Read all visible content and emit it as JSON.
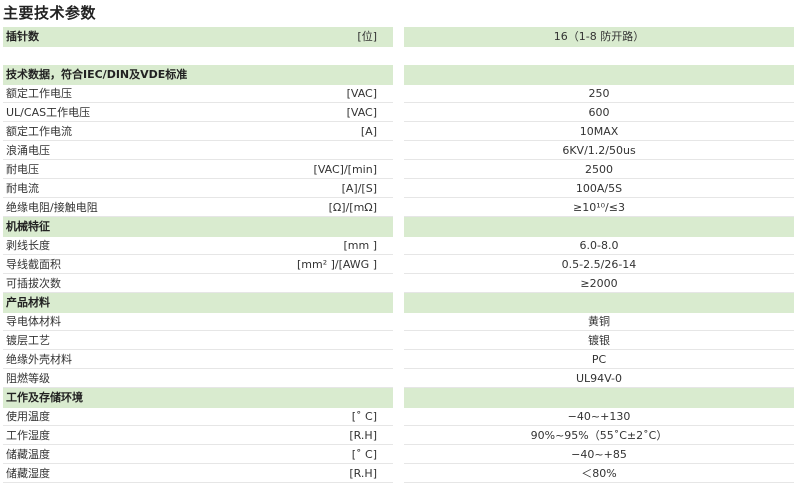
{
  "title": "主要技术参数",
  "colors": {
    "header_bg": "#d9ebcf"
  },
  "rows": [
    {
      "type": "hdr",
      "label": "插针数",
      "unit": "[位]",
      "value": "16（1-8 防开路）"
    },
    {
      "type": "blank",
      "label": "",
      "unit": "",
      "value": ""
    },
    {
      "type": "hdr",
      "label": "技术数据，符合IEC/DIN及VDE标准",
      "unit": "",
      "value": ""
    },
    {
      "type": "row",
      "label": "额定工作电压",
      "unit": "[VAC]",
      "value": "250"
    },
    {
      "type": "row",
      "label": "UL/CAS工作电压",
      "unit": "[VAC]",
      "value": "600"
    },
    {
      "type": "row",
      "label": "额定工作电流",
      "unit": "[A]",
      "value": "10MAX"
    },
    {
      "type": "row",
      "label": "浪涌电压",
      "unit": "",
      "value": "6KV/1.2/50us"
    },
    {
      "type": "row",
      "label": "耐电压",
      "unit": "[VAC]/[min]",
      "value": "2500"
    },
    {
      "type": "row",
      "label": "耐电流",
      "unit": "[A]/[S]",
      "value": "100A/5S"
    },
    {
      "type": "row",
      "label": "绝缘电阻/接触电阻",
      "unit": "[Ω]/[mΩ]",
      "value": "≥10¹⁰/≤3"
    },
    {
      "type": "hdr",
      "label": "机械特征",
      "unit": "",
      "value": ""
    },
    {
      "type": "row",
      "label": "剥线长度",
      "unit": "[mm ]",
      "value": "6.0-8.0"
    },
    {
      "type": "row",
      "label": "导线截面积",
      "unit": "[mm² ]/[AWG ]",
      "value": "0.5-2.5/26-14"
    },
    {
      "type": "row",
      "label": "可插拔次数",
      "unit": "",
      "value": "≥2000"
    },
    {
      "type": "hdr",
      "label": "产品材料",
      "unit": "",
      "value": ""
    },
    {
      "type": "row",
      "label": "导电体材料",
      "unit": "",
      "value": "黄铜"
    },
    {
      "type": "row",
      "label": "镀层工艺",
      "unit": "",
      "value": "镀银"
    },
    {
      "type": "row",
      "label": "绝缘外壳材料",
      "unit": "",
      "value": "PC"
    },
    {
      "type": "row",
      "label": "阻燃等级",
      "unit": "",
      "value": "UL94V-0"
    },
    {
      "type": "hdr",
      "label": "工作及存储环境",
      "unit": "",
      "value": ""
    },
    {
      "type": "row",
      "label": "使用温度",
      "unit": "[˚ C]",
      "value": "−40~+130"
    },
    {
      "type": "row",
      "label": "工作湿度",
      "unit": "[R.H]",
      "value": "90%~95%（55˚C±2˚C）"
    },
    {
      "type": "row",
      "label": "储藏温度",
      "unit": "[˚ C]",
      "value": "−40~+85"
    },
    {
      "type": "row",
      "label": "储藏湿度",
      "unit": "[R.H]",
      "value": "＜80%"
    }
  ]
}
